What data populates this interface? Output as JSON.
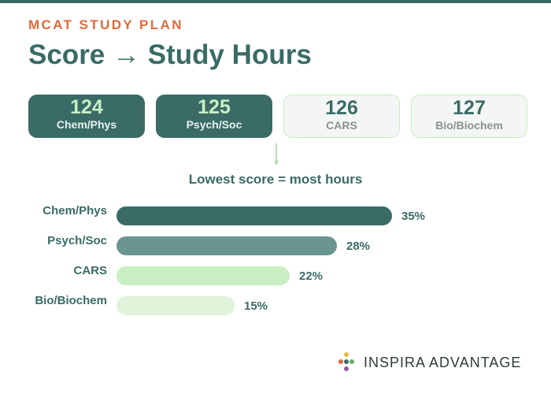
{
  "header": {
    "eyebrow": "MCAT STUDY PLAN",
    "title": "Score → Study Hours"
  },
  "score_cards": [
    {
      "score": "124",
      "label": "Chem/Phys",
      "style": "dark"
    },
    {
      "score": "125",
      "label": "Psych/Soc",
      "style": "dark"
    },
    {
      "score": "126",
      "label": "CARS",
      "style": "light"
    },
    {
      "score": "127",
      "label": "Bio/Biochem",
      "style": "light"
    }
  ],
  "subtitle": "Lowest score = most hours",
  "chart_data": {
    "type": "bar",
    "orientation": "horizontal",
    "categories": [
      "Chem/Phys",
      "Psych/Soc",
      "CARS",
      "Bio/Biochem"
    ],
    "values": [
      35,
      28,
      22,
      15
    ],
    "value_labels": [
      "35%",
      "28%",
      "22%",
      "15%"
    ],
    "unit": "%",
    "bar_colors": [
      "#3a6b66",
      "#6b9590",
      "#c8efc2",
      "#dff4da"
    ],
    "title": "",
    "xlabel": "",
    "ylabel": "",
    "grid": false,
    "legend": "none"
  },
  "brand": {
    "name": "INSPIRA ADVANTAGE",
    "dot_colors": [
      "#e0693a",
      "#3a6b66",
      "#6fa96b",
      "#8e5a9b",
      "#e8b83a"
    ]
  },
  "colors": {
    "primary": "#3a6b66",
    "accent": "#e0693a",
    "light_green": "#c8efc2"
  }
}
